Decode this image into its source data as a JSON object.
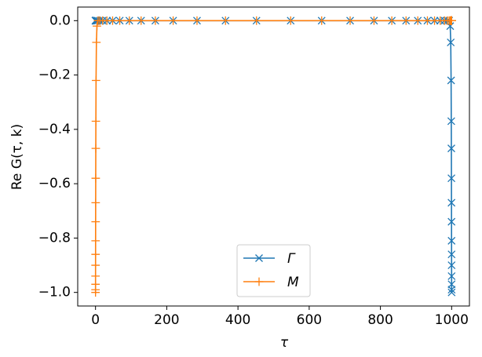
{
  "chart_data": {
    "type": "line",
    "xlabel": "τ",
    "ylabel": "Re G(τ, k)",
    "xlim": [
      -50,
      1050
    ],
    "ylim": [
      -1.05,
      0.05
    ],
    "xticks": [
      0,
      200,
      400,
      600,
      800,
      1000
    ],
    "yticks": [
      {
        "value": 0,
        "label": "0.0"
      },
      {
        "value": -0.2,
        "label": "−0.2"
      },
      {
        "value": -0.4,
        "label": "−0.4"
      },
      {
        "value": -0.6,
        "label": "−0.6"
      },
      {
        "value": -0.8,
        "label": "−0.8"
      },
      {
        "value": -1,
        "label": "−1.0"
      }
    ],
    "legend": "lower center",
    "x": [
      0,
      0.01,
      0.03,
      0.06,
      0.1,
      0.15,
      0.21,
      0.3,
      0.4,
      0.55,
      0.75,
      1,
      1.5,
      2.5,
      4,
      7,
      12,
      20,
      32,
      48,
      68,
      95,
      128,
      168,
      218,
      285,
      365,
      452,
      548,
      635,
      715,
      782,
      832,
      872,
      905,
      932,
      952,
      968,
      980,
      988,
      993,
      996,
      997.5,
      998.5,
      999,
      999.25,
      999.45,
      999.6,
      999.7,
      999.79,
      999.85,
      999.9,
      999.94,
      999.97,
      999.99,
      1000
    ],
    "series": [
      {
        "name": "Γ",
        "color": "#1f77b4",
        "marker": "x",
        "values": [
          0,
          0,
          0,
          0,
          0,
          0,
          0,
          0,
          0,
          0,
          0,
          0,
          0,
          0,
          0,
          0,
          0,
          0,
          0,
          0,
          0,
          0,
          0,
          0,
          0,
          0,
          0,
          0,
          0,
          0,
          0,
          0,
          0,
          0,
          0,
          0,
          0,
          0,
          0,
          0,
          0,
          -0.02,
          -0.08,
          -0.22,
          -0.37,
          -0.47,
          -0.58,
          -0.67,
          -0.74,
          -0.81,
          -0.86,
          -0.9,
          -0.94,
          -0.97,
          -0.99,
          -1
        ]
      },
      {
        "name": "M",
        "color": "#ff7f0e",
        "marker": "+",
        "values": [
          -1,
          -0.99,
          -0.97,
          -0.94,
          -0.9,
          -0.86,
          -0.81,
          -0.74,
          -0.67,
          -0.58,
          -0.47,
          -0.37,
          -0.22,
          -0.08,
          -0.02,
          0,
          0,
          0,
          0,
          0,
          0,
          0,
          0,
          0,
          0,
          0,
          0,
          0,
          0,
          0,
          0,
          0,
          0,
          0,
          0,
          0,
          0,
          0,
          0,
          0,
          0,
          0,
          0,
          0,
          0,
          0,
          0,
          0,
          0,
          0,
          0,
          0,
          0,
          0,
          0,
          0
        ]
      }
    ]
  }
}
